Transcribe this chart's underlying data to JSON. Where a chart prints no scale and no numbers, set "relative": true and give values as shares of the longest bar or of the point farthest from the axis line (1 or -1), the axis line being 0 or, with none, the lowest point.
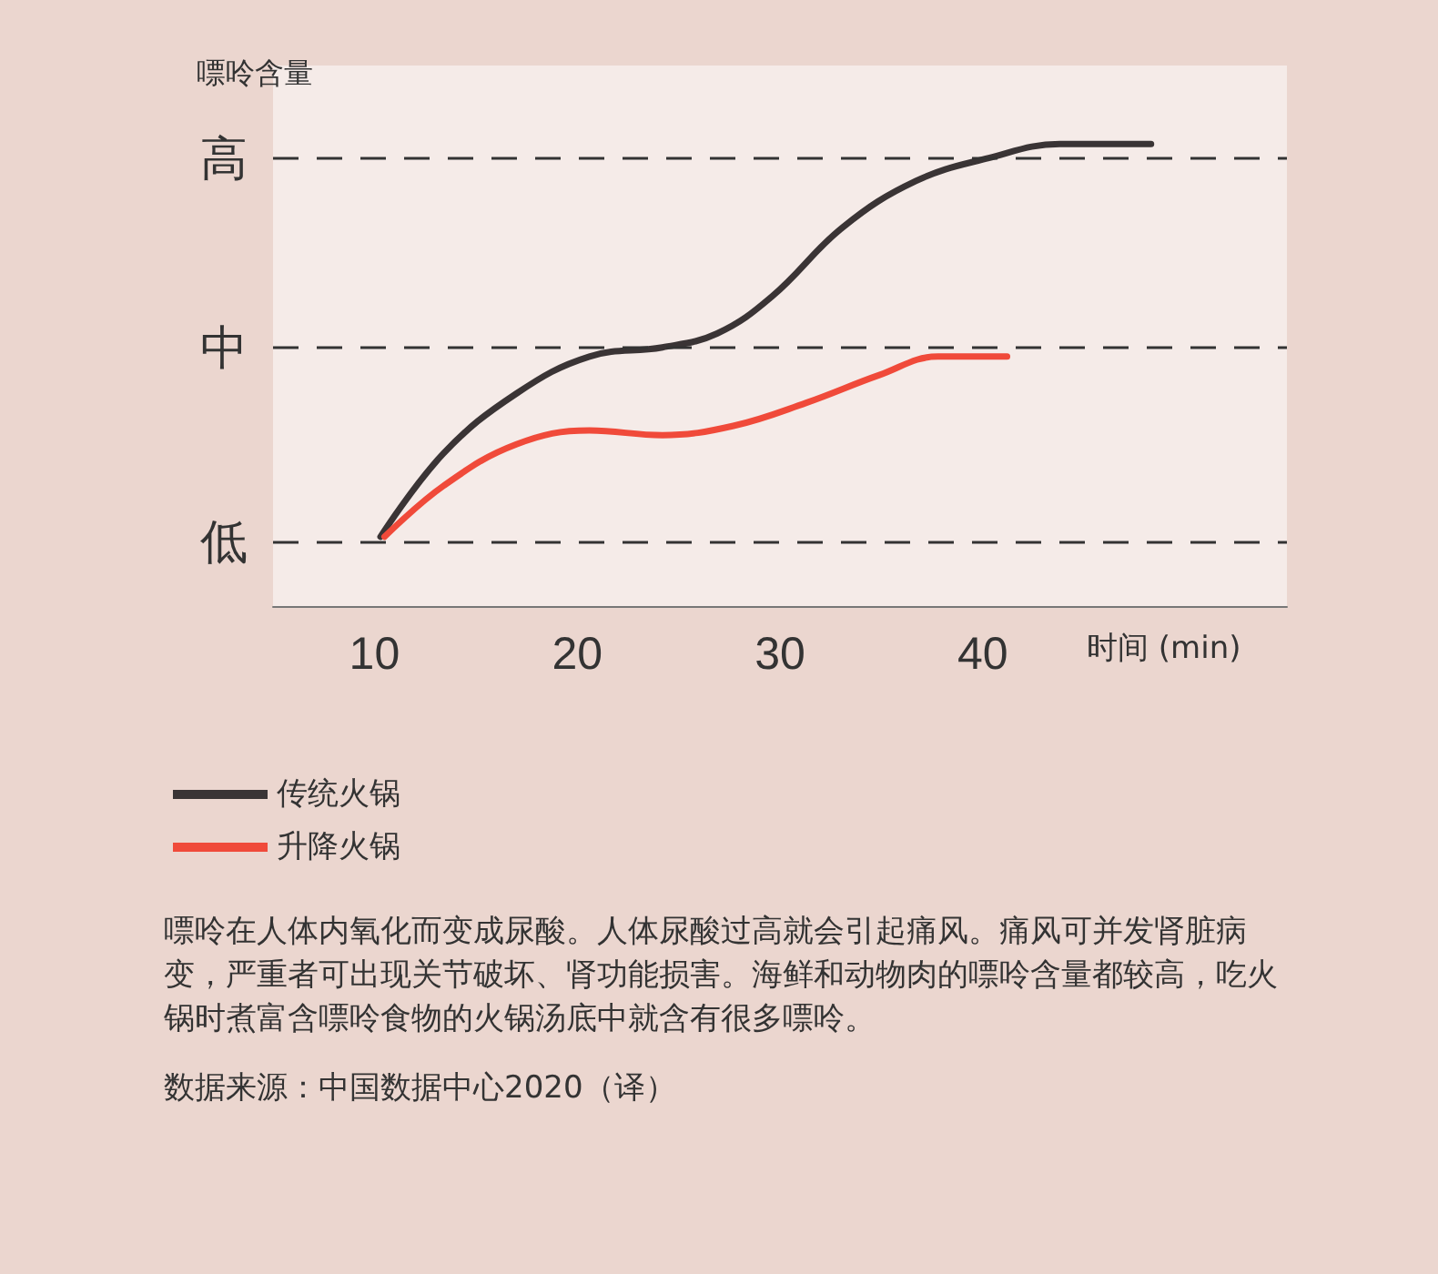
{
  "chart_data": {
    "type": "line",
    "ylabel": "嘌呤含量",
    "xlabel": "时间 (min)",
    "xlim": [
      5,
      55
    ],
    "xticks": [
      10,
      20,
      30,
      40
    ],
    "relative": true,
    "legend": "bottom left",
    "marker": "none",
    "line_style": "solid",
    "ref_lines": [
      {
        "axis": "y",
        "value": 0.97,
        "label": "高",
        "line_style": "dashed",
        "color": "#333333"
      },
      {
        "axis": "y",
        "value": 0.56,
        "label": "中",
        "line_style": "dashed",
        "color": "#333333"
      },
      {
        "axis": "y",
        "value": 0.14,
        "label": "低",
        "line_style": "dashed",
        "color": "#333333"
      }
    ],
    "series": [
      {
        "name": "传统火锅",
        "color": "#3a3435",
        "x": [
          10.3,
          13.4,
          17,
          20.6,
          24.2,
          26.9,
          29.6,
          33.1,
          36.7,
          40.3,
          43.8,
          48.3
        ],
        "values": [
          0.15,
          0.33,
          0.46,
          0.54,
          0.56,
          0.59,
          0.67,
          0.82,
          0.92,
          0.97,
          1.0,
          1.0
        ]
      },
      {
        "name": "升降火锅",
        "color": "#f04a3a",
        "x": [
          10.5,
          13.4,
          17,
          20.6,
          24.2,
          27.7,
          31.3,
          34.9,
          37.8,
          41.2
        ],
        "values": [
          0.15,
          0.26,
          0.35,
          0.38,
          0.37,
          0.39,
          0.44,
          0.5,
          0.54,
          0.54
        ]
      }
    ],
    "annotations": [
      "嘌呤在人体内氧化而变成尿酸。人体尿酸过高就会引起痛风。痛风可并发肾脏病变，严重者可出现关节破坏、肾功能损害。海鲜和动物肉的嘌呤含量都较高，吃火锅时煮富含嘌呤食物的火锅汤底中就含有很多嘌呤。",
      "数据来源：中国数据中心2020（译）"
    ]
  }
}
